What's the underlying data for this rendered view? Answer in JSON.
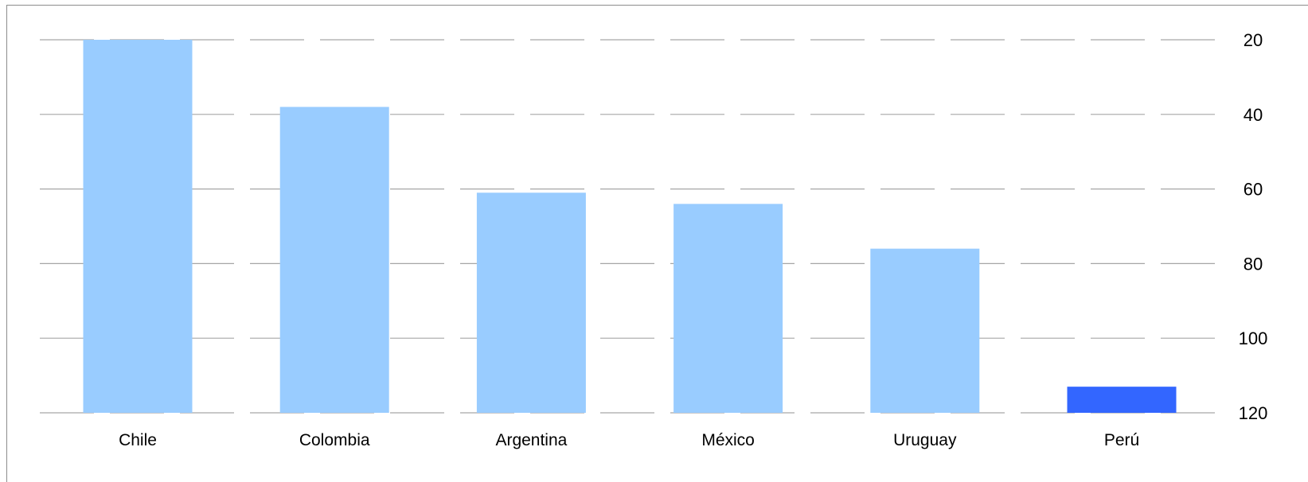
{
  "chart_data": {
    "type": "bar",
    "categories": [
      "Chile",
      "Colombia",
      "Argentina",
      "México",
      "Uruguay",
      "Perú"
    ],
    "values": [
      20,
      38,
      61,
      64,
      76,
      113
    ],
    "y_axis": {
      "range": [
        20,
        120
      ],
      "inverted": true,
      "ticks": [
        20,
        40,
        60,
        80,
        100,
        120
      ],
      "tick_labels": [
        "20",
        "40",
        "60",
        "80",
        "100",
        "120"
      ],
      "position": "right"
    },
    "grid": true,
    "grid_style": "dashed",
    "bar_colors": [
      "#99ccff",
      "#99ccff",
      "#99ccff",
      "#99ccff",
      "#99ccff",
      "#3366ff"
    ],
    "legend": "none"
  }
}
